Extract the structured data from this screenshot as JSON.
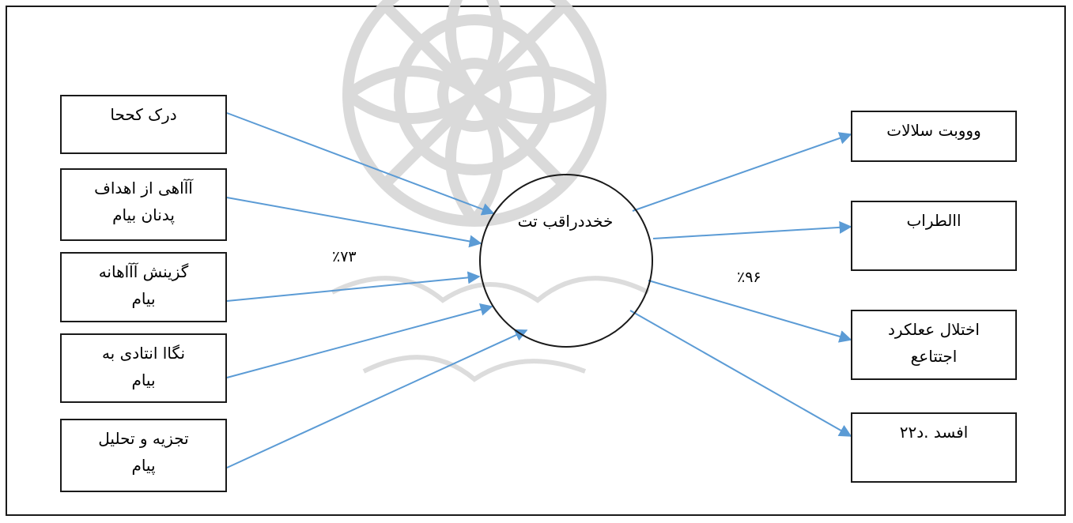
{
  "inputs": [
    {
      "line1": "درک کححا",
      "line2": ""
    },
    {
      "line1": "آآاهی از اهداف",
      "line2": "پدنان بیام"
    },
    {
      "line1": "گزینش آآاهانه",
      "line2": "بیام"
    },
    {
      "line1": "نگاا انتادی به",
      "line2": "بیام"
    },
    {
      "line1": "تجزیه و تحلیل",
      "line2": "پیام"
    }
  ],
  "center": {
    "label": "خخددراقب تت"
  },
  "outputs": [
    {
      "line1": "وووبت سلالات",
      "line2": ""
    },
    {
      "line1": "االطراب",
      "line2": ""
    },
    {
      "line1": "اختلال ععلکرد",
      "line2": "اجتتاعع"
    },
    {
      "line1": "افسد .د۲۲",
      "line2": ""
    }
  ],
  "input_percent": "٪۷۳",
  "output_percent": "٪۹۶",
  "colors": {
    "arrow": "#5b9bd5",
    "border": "#1a1a1a",
    "watermark": "#d9d9d9"
  }
}
